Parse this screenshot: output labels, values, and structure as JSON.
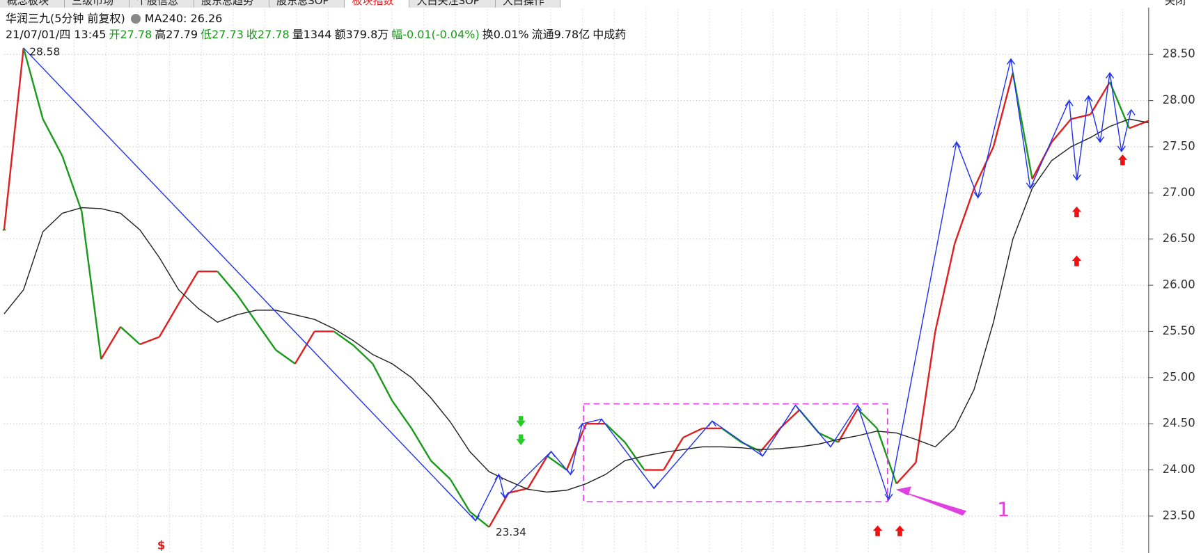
{
  "tabs": [
    "概念板块",
    "三级市场",
    "个股信息",
    "股东总趋势",
    "股东总SOP",
    "板块指数",
    "大白关注SOP",
    "大白操作"
  ],
  "active_tab": 5,
  "close_label": "关闭",
  "header": {
    "title": "华润三九(5分钟 前复权)",
    "ma_label": "MA240: 26.26",
    "info": [
      {
        "text": "21/07/01/四 13:45",
        "color": "#111111"
      },
      {
        "text": "开27.78",
        "color": "#1a9a1a"
      },
      {
        "text": "高27.79",
        "color": "#111111"
      },
      {
        "text": "低27.73",
        "color": "#1a9a1a"
      },
      {
        "text": "收27.78",
        "color": "#1a9a1a"
      },
      {
        "text": "量1344",
        "color": "#111111"
      },
      {
        "text": "额379.8万",
        "color": "#111111"
      },
      {
        "text": "幅-0.01(-0.04%)",
        "color": "#1a9a1a"
      },
      {
        "text": "换0.01%",
        "color": "#111111"
      },
      {
        "text": "流通9.78亿",
        "color": "#111111"
      },
      {
        "text": "中成药",
        "color": "#111111"
      }
    ]
  },
  "chart_data": {
    "type": "line",
    "ylim": [
      23.1,
      28.99
    ],
    "yticks": [
      {
        "value": 23.5,
        "label": "23.50"
      },
      {
        "value": 24,
        "label": "24.00"
      },
      {
        "value": 24.5,
        "label": "24.50"
      },
      {
        "value": 25,
        "label": "25.00"
      },
      {
        "value": 25.5,
        "label": "25.50"
      },
      {
        "value": 26,
        "label": "26.00"
      },
      {
        "value": 26.5,
        "label": "26.50"
      },
      {
        "value": 27,
        "label": "27.00"
      },
      {
        "value": 27.5,
        "label": "27.50"
      },
      {
        "value": 28,
        "label": "28.00"
      },
      {
        "value": 28.5,
        "label": "28.50"
      }
    ],
    "grid": true,
    "up_color": "#e02020",
    "down_color": "#1a9a1a",
    "categories": [
      null,
      null,
      null,
      null,
      null,
      null,
      null,
      null,
      null,
      null,
      null,
      null,
      null,
      null,
      null,
      null,
      null,
      null,
      null,
      null,
      null,
      null,
      null,
      null,
      null,
      null,
      null,
      null,
      null,
      null,
      null,
      null,
      null,
      null,
      null,
      null,
      null,
      null,
      null,
      null,
      null,
      null,
      null,
      null,
      null,
      null,
      null,
      null,
      null,
      null,
      null,
      null,
      null,
      null,
      null,
      null,
      null,
      null,
      null,
      null
    ],
    "series": [
      {
        "style": "candles",
        "values": [
          26.6,
          28.57,
          27.8,
          27.4,
          26.8,
          25.2,
          25.55,
          25.36,
          25.44,
          25.8,
          26.15,
          26.15,
          25.9,
          25.6,
          25.3,
          25.15,
          25.5,
          25.5,
          25.35,
          25.15,
          24.75,
          24.45,
          24.1,
          23.9,
          23.55,
          23.38,
          23.75,
          23.8,
          24.15,
          24.0,
          24.5,
          24.5,
          24.3,
          24.0,
          24.0,
          24.35,
          24.45,
          24.45,
          24.3,
          24.2,
          24.45,
          24.65,
          24.4,
          24.3,
          24.66,
          24.45,
          23.85,
          24.08,
          25.5,
          26.45,
          27.05,
          27.5,
          28.3,
          27.15,
          27.55,
          27.8,
          27.85,
          28.2,
          27.7,
          27.78
        ]
      },
      {
        "style": "line",
        "color": "#222222",
        "values": [
          25.69,
          25.95,
          26.58,
          26.78,
          26.84,
          26.83,
          26.78,
          26.6,
          26.3,
          25.95,
          25.75,
          25.6,
          25.68,
          25.73,
          25.73,
          25.68,
          25.63,
          25.53,
          25.4,
          25.25,
          25.15,
          25.0,
          24.78,
          24.52,
          24.2,
          23.98,
          23.88,
          23.79,
          23.76,
          23.78,
          23.85,
          23.95,
          24.1,
          24.15,
          24.19,
          24.22,
          24.25,
          24.25,
          24.24,
          24.22,
          24.23,
          24.25,
          24.28,
          24.33,
          24.37,
          24.42,
          24.4,
          24.33,
          24.25,
          24.45,
          24.87,
          25.6,
          26.5,
          27.05,
          27.35,
          27.5,
          27.6,
          27.72,
          27.8,
          27.76
        ]
      },
      {
        "style": "zigzag",
        "color": "#2233ee",
        "x": [
          1.0,
          24.3,
          25.5,
          25.8,
          28.2,
          29.2,
          29.8,
          30.8,
          33.5,
          36.5,
          39.1,
          40.8,
          42.6,
          44.0,
          45.6,
          49.1,
          50.2,
          51.9,
          52.9,
          54.9,
          55.3,
          55.9,
          56.5,
          57.0,
          57.6,
          58.1
        ],
        "values": [
          28.57,
          23.45,
          23.95,
          23.7,
          24.2,
          23.95,
          24.5,
          24.55,
          23.8,
          24.53,
          24.15,
          24.7,
          24.25,
          24.7,
          23.68,
          27.55,
          26.95,
          28.45,
          27.05,
          28.0,
          27.14,
          28.05,
          27.55,
          28.3,
          27.45,
          27.9
        ]
      }
    ],
    "annotations": [
      "28.58",
      "23.34",
      "1",
      "$"
    ]
  }
}
